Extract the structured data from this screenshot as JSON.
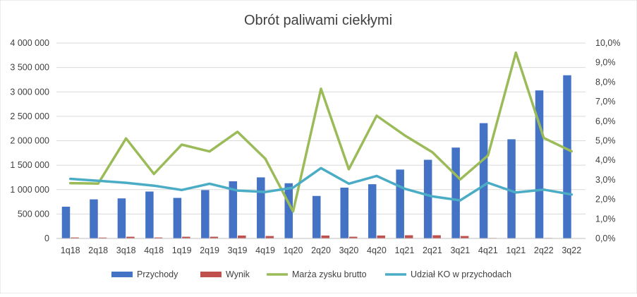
{
  "chart_data": {
    "type": "bar",
    "title": "Obrót paliwami ciekłymi",
    "categories": [
      "1q18",
      "2q18",
      "3q18",
      "4q18",
      "1q19",
      "2q19",
      "3q19",
      "4q19",
      "1q20",
      "2q20",
      "3q20",
      "4q20",
      "1q21",
      "2q21",
      "3q21",
      "4q21",
      "1q21",
      "2q22",
      "3q22"
    ],
    "y_left": {
      "ylim": [
        0,
        4000000
      ],
      "ticks": [
        0,
        500000,
        1000000,
        1500000,
        2000000,
        2500000,
        3000000,
        3500000,
        4000000
      ],
      "tick_labels": [
        "0",
        "500 000",
        "1 000 000",
        "1 500 000",
        "2 000 000",
        "2 500 000",
        "3 000 000",
        "3 500 000",
        "4 000 000"
      ]
    },
    "y_right": {
      "ylim": [
        0,
        0.1
      ],
      "ticks": [
        0,
        0.01,
        0.02,
        0.03,
        0.04,
        0.05,
        0.06,
        0.07,
        0.08,
        0.09,
        0.1
      ],
      "tick_labels": [
        "0,0%",
        "1,0%",
        "2,0%",
        "3,0%",
        "4,0%",
        "5,0%",
        "6,0%",
        "7,0%",
        "8,0%",
        "9,0%",
        "10,0%"
      ]
    },
    "series": [
      {
        "name": "Przychody",
        "kind": "bar",
        "axis": "left",
        "color": "#4472C4",
        "values": [
          650000,
          800000,
          820000,
          960000,
          830000,
          990000,
          1170000,
          1250000,
          1130000,
          870000,
          1040000,
          1110000,
          1410000,
          1610000,
          1860000,
          2360000,
          2030000,
          3030000,
          3340000
        ]
      },
      {
        "name": "Wynik",
        "kind": "bar",
        "axis": "left",
        "color": "#C0504D",
        "values": [
          20000,
          18000,
          35000,
          20000,
          35000,
          35000,
          60000,
          50000,
          5000,
          60000,
          35000,
          60000,
          65000,
          65000,
          50000,
          10000,
          5000,
          10000,
          5000
        ]
      },
      {
        "name": "Marża zysku brutto",
        "kind": "line",
        "axis": "right",
        "color": "#9BBB59",
        "values": [
          0.0283,
          0.0281,
          0.0512,
          0.033,
          0.048,
          0.0445,
          0.0546,
          0.0408,
          0.0138,
          0.0766,
          0.0354,
          0.0628,
          0.0528,
          0.0441,
          0.0302,
          0.0425,
          0.0951,
          0.0514,
          0.0446
        ]
      },
      {
        "name": "Udział KO w przychodach",
        "kind": "line",
        "axis": "right",
        "color": "#4BACC6",
        "values": [
          0.0305,
          0.0295,
          0.0285,
          0.027,
          0.0248,
          0.028,
          0.0245,
          0.0238,
          0.026,
          0.036,
          0.028,
          0.032,
          0.0255,
          0.0215,
          0.0195,
          0.0285,
          0.0235,
          0.025,
          0.0225
        ]
      }
    ],
    "legend_position": "bottom",
    "grid": true
  }
}
